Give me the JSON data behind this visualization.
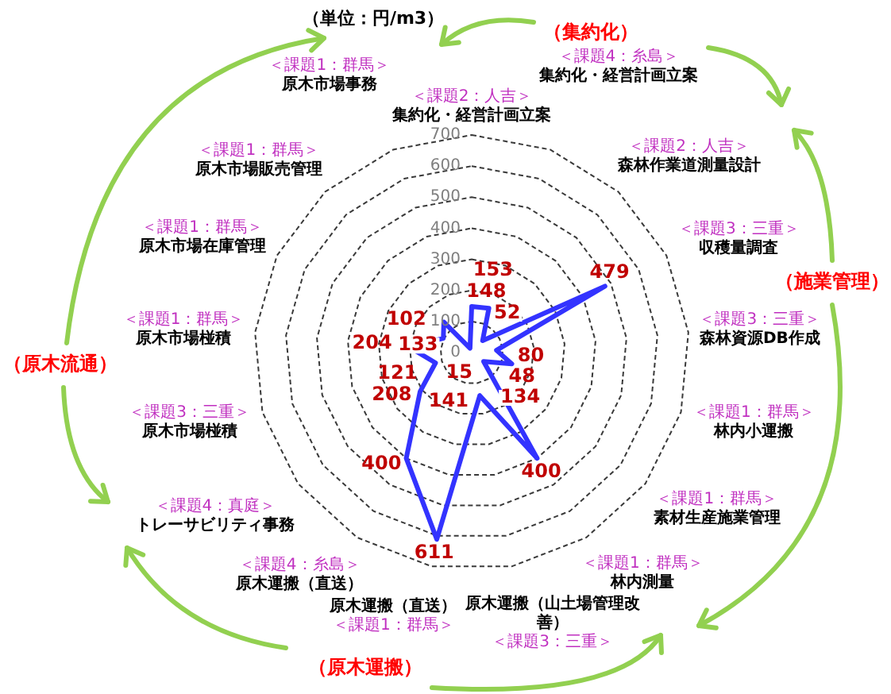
{
  "chart_data": {
    "type": "radar",
    "ylabel": "（単位：円/m3）",
    "categories": [
      "＜課題2：人吉＞集約化・経営計画立案",
      "＜課題4：糸島＞集約化・経営計画立案",
      "＜課題2：人吉＞森林作業道測量設計",
      "＜課題3：三重＞収穫量調査",
      "＜課題3：三重＞森林資源DB作成",
      "＜課題1：群馬＞林内小運搬",
      "＜課題1：群馬＞素材生産施業管理",
      "＜課題1：群馬＞林内測量",
      "原木運搬（山土場管理改善）＜課題3：三重＞",
      "原木運搬（直送）＜課題1：群馬＞",
      "＜課題4：糸島＞原木運搬（直送）",
      "＜課題4：真庭＞トレーサビリティ事務",
      "＜課題3：三重＞原木市場椪積",
      "＜課題1：群馬＞原木市場椪積",
      "＜課題1：群馬＞原木市場在庫管理",
      "＜課題1：群馬＞原木市場販売管理",
      "＜課題1：群馬＞原木市場事務"
    ],
    "values": [
      148,
      153,
      52,
      479,
      80,
      134,
      48,
      400,
      141,
      611,
      400,
      208,
      121,
      204,
      102,
      133,
      15
    ],
    "color": "#3333ff",
    "ylim": [
      0,
      700
    ],
    "yticks": [
      0,
      100,
      200,
      300,
      400,
      500,
      600,
      700
    ],
    "grid": true,
    "marker": "none",
    "line_style": "solid",
    "data_labels": true,
    "annotations": [
      "（集約化）",
      "（施業管理）",
      "（原木運搬）",
      "（原木流通）"
    ]
  }
}
